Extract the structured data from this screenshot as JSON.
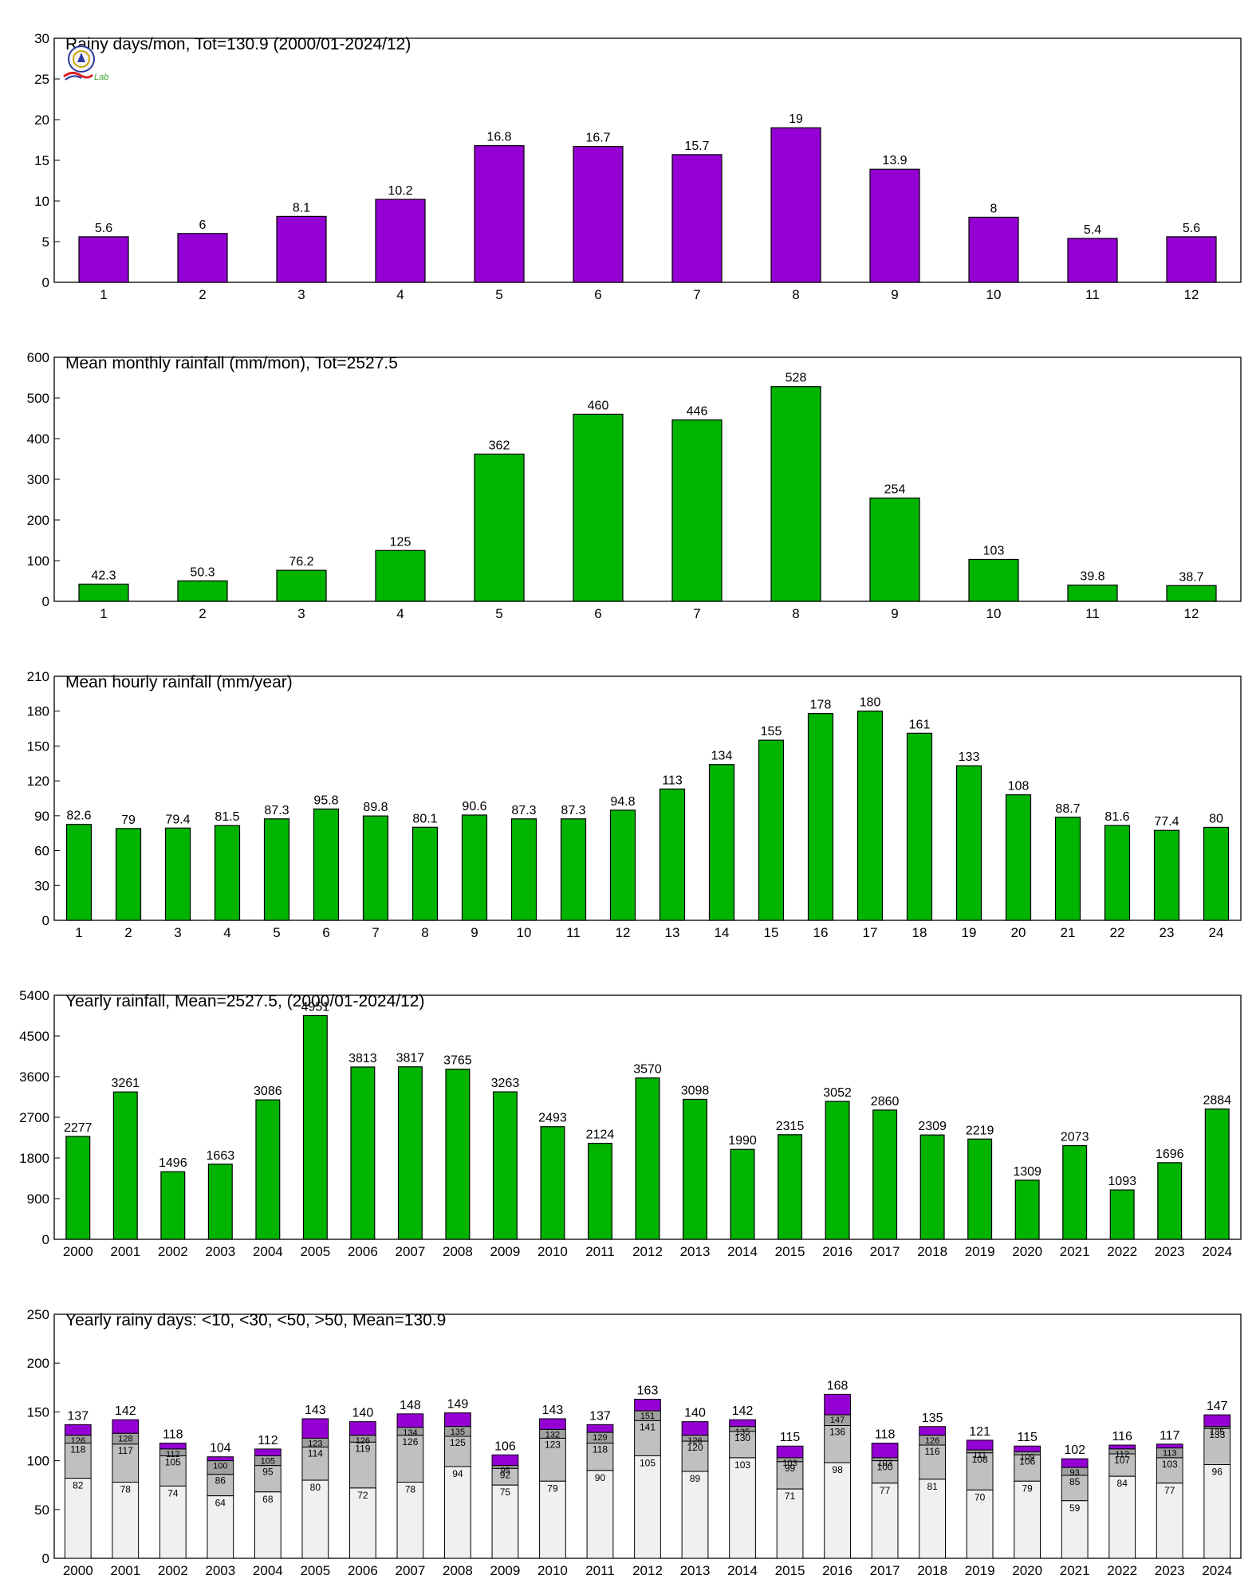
{
  "colors": {
    "purple": "#9400D3",
    "green": "#00B400",
    "cat_lt10": "#F0F0F0",
    "cat_lt30": "#C0C0C0",
    "cat_lt50": "#A0A0A0",
    "cat_gt50": "#9400D3",
    "axis": "#000000"
  },
  "logo": {
    "text": "Lab",
    "icon": "seal-logo-icon"
  },
  "chart_data": [
    {
      "type": "bar",
      "title": "Rainy days/mon, Tot=130.9 (2000/01-2024/12)",
      "categories": [
        "1",
        "2",
        "3",
        "4",
        "5",
        "6",
        "7",
        "8",
        "9",
        "10",
        "11",
        "12"
      ],
      "values": [
        5.6,
        6,
        8.1,
        10.2,
        16.8,
        16.7,
        15.7,
        19,
        13.9,
        8,
        5.4,
        5.6
      ],
      "labels": [
        "5.6",
        "6",
        "8.1",
        "10.2",
        "16.8",
        "16.7",
        "15.7",
        "19",
        "13.9",
        "8",
        "5.4",
        "5.6"
      ],
      "yticks": [
        "0",
        "5",
        "10",
        "15",
        "20",
        "25",
        "30"
      ],
      "ylim": [
        0,
        30
      ],
      "color": "purple",
      "grid": false
    },
    {
      "type": "bar",
      "title": "Mean monthly rainfall (mm/mon), Tot=2527.5",
      "categories": [
        "1",
        "2",
        "3",
        "4",
        "5",
        "6",
        "7",
        "8",
        "9",
        "10",
        "11",
        "12"
      ],
      "values": [
        42.3,
        50.3,
        76.2,
        125,
        362,
        460,
        446,
        528,
        254,
        103,
        39.8,
        38.7
      ],
      "labels": [
        "42.3",
        "50.3",
        "76.2",
        "125",
        "362",
        "460",
        "446",
        "528",
        "254",
        "103",
        "39.8",
        "38.7"
      ],
      "yticks": [
        "0",
        "100",
        "200",
        "300",
        "400",
        "500",
        "600"
      ],
      "ylim": [
        0,
        600
      ],
      "color": "green",
      "grid": false
    },
    {
      "type": "bar",
      "title": "Mean hourly rainfall (mm/year)",
      "categories": [
        "1",
        "2",
        "3",
        "4",
        "5",
        "6",
        "7",
        "8",
        "9",
        "10",
        "11",
        "12",
        "13",
        "14",
        "15",
        "16",
        "17",
        "18",
        "19",
        "20",
        "21",
        "22",
        "23",
        "24"
      ],
      "values": [
        82.6,
        79,
        79.4,
        81.5,
        87.3,
        95.8,
        89.8,
        80.1,
        90.6,
        87.3,
        87.3,
        94.8,
        113,
        134,
        155,
        178,
        180,
        161,
        133,
        108,
        88.7,
        81.6,
        77.4,
        80
      ],
      "labels": [
        "82.6",
        "79",
        "79.4",
        "81.5",
        "87.3",
        "95.8",
        "89.8",
        "80.1",
        "90.6",
        "87.3",
        "87.3",
        "94.8",
        "113",
        "134",
        "155",
        "178",
        "180",
        "161",
        "133",
        "108",
        "88.7",
        "81.6",
        "77.4",
        "80"
      ],
      "yticks": [
        "0",
        "30",
        "60",
        "90",
        "120",
        "150",
        "180",
        "210"
      ],
      "ylim": [
        0,
        210
      ],
      "color": "green",
      "grid": false
    },
    {
      "type": "bar",
      "title": "Yearly rainfall, Mean=2527.5, (2000/01-2024/12)",
      "categories": [
        "2000",
        "2001",
        "2002",
        "2003",
        "2004",
        "2005",
        "2006",
        "2007",
        "2008",
        "2009",
        "2010",
        "2011",
        "2012",
        "2013",
        "2014",
        "2015",
        "2016",
        "2017",
        "2018",
        "2019",
        "2020",
        "2021",
        "2022",
        "2023",
        "2024"
      ],
      "values": [
        2277,
        3261,
        1496,
        1663,
        3086,
        4951,
        3813,
        3817,
        3765,
        3263,
        2493,
        2124,
        3570,
        3098,
        1990,
        2315,
        3052,
        2860,
        2309,
        2219,
        1309,
        2073,
        1093,
        1696,
        2884
      ],
      "labels": [
        "2277",
        "3261",
        "1496",
        "1663",
        "3086",
        "4951",
        "3813",
        "3817",
        "3765",
        "3263",
        "2493",
        "2124",
        "3570",
        "3098",
        "1990",
        "2315",
        "3052",
        "2860",
        "2309",
        "2219",
        "1309",
        "2073",
        "1093",
        "1696",
        "2884"
      ],
      "yticks": [
        "0",
        "900",
        "1800",
        "2700",
        "3600",
        "4500",
        "5400"
      ],
      "ylim": [
        0,
        5400
      ],
      "color": "green",
      "grid": false
    },
    {
      "type": "bar",
      "stacked": true,
      "title": "Yearly rainy days: <10, <30, <50, >50, Mean=130.9",
      "categories": [
        "2000",
        "2001",
        "2002",
        "2003",
        "2004",
        "2005",
        "2006",
        "2007",
        "2008",
        "2009",
        "2010",
        "2011",
        "2012",
        "2013",
        "2014",
        "2015",
        "2016",
        "2017",
        "2018",
        "2019",
        "2020",
        "2021",
        "2022",
        "2023",
        "2024"
      ],
      "cumulative": {
        "lt10": [
          82,
          78,
          74,
          64,
          68,
          80,
          72,
          78,
          94,
          75,
          79,
          90,
          105,
          89,
          103,
          71,
          98,
          77,
          81,
          70,
          79,
          59,
          84,
          77,
          96
        ],
        "lt30": [
          118,
          117,
          105,
          86,
          95,
          114,
          119,
          126,
          125,
          92,
          123,
          118,
          141,
          120,
          130,
          99,
          136,
          100,
          116,
          108,
          106,
          85,
          107,
          103,
          133
        ],
        "lt50": [
          126,
          128,
          112,
          100,
          105,
          123,
          126,
          134,
          135,
          95,
          132,
          129,
          151,
          126,
          135,
          103,
          147,
          103,
          126,
          111,
          109,
          93,
          112,
          113,
          135
        ],
        "total": [
          137,
          142,
          118,
          104,
          112,
          143,
          140,
          148,
          149,
          106,
          143,
          137,
          163,
          140,
          142,
          115,
          168,
          118,
          135,
          121,
          115,
          102,
          116,
          117,
          147
        ]
      },
      "yticks": [
        "0",
        "50",
        "100",
        "150",
        "200",
        "250"
      ],
      "ylim": [
        0,
        250
      ],
      "grid": false
    }
  ]
}
